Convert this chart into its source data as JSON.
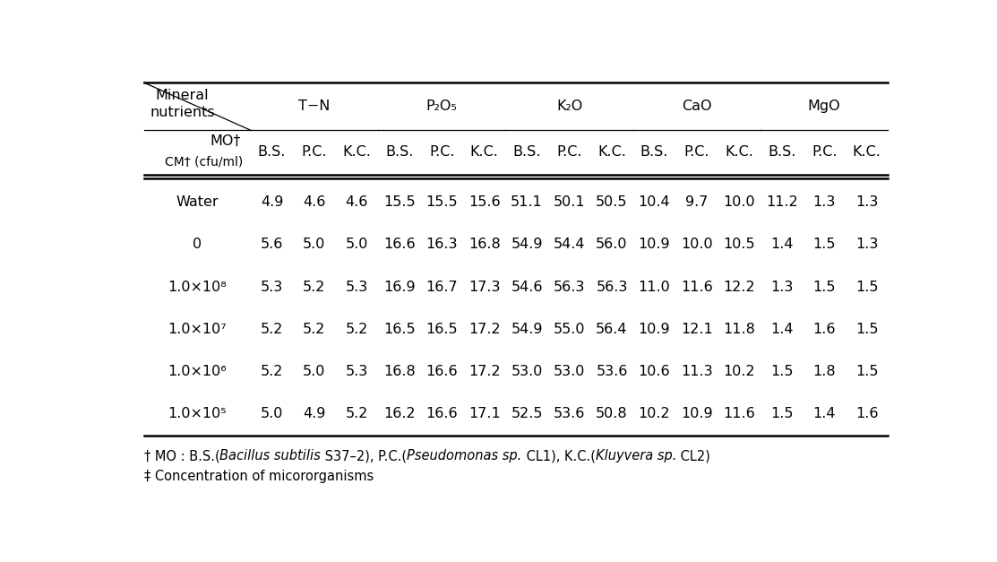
{
  "nutrient_groups": [
    "T−N",
    "P₂O₅",
    "K₂O",
    "CaO",
    "MgO"
  ],
  "subheaders": [
    "B.S.",
    "P.C.",
    "K.C.",
    "B.S.",
    "P.C.",
    "K.C.",
    "B.S.",
    "P.C.",
    "K.C.",
    "B.S.",
    "P.C.",
    "K.C.",
    "B.S.",
    "P.C.",
    "K.C."
  ],
  "rows": [
    {
      "label": "Water",
      "values": [
        "4.9",
        "4.6",
        "4.6",
        "15.5",
        "15.5",
        "15.6",
        "51.1",
        "50.1",
        "50.5",
        "10.4",
        "9.7",
        "10.0",
        "11.2",
        "1.3",
        "1.3"
      ]
    },
    {
      "label": "0",
      "values": [
        "5.6",
        "5.0",
        "5.0",
        "16.6",
        "16.3",
        "16.8",
        "54.9",
        "54.4",
        "56.0",
        "10.9",
        "10.0",
        "10.5",
        "1.4",
        "1.5",
        "1.3"
      ]
    },
    {
      "label": "1.0×10⁸",
      "values": [
        "5.3",
        "5.2",
        "5.3",
        "16.9",
        "16.7",
        "17.3",
        "54.6",
        "56.3",
        "56.3",
        "11.0",
        "11.6",
        "12.2",
        "1.3",
        "1.5",
        "1.5"
      ]
    },
    {
      "label": "1.0×10⁷",
      "values": [
        "5.2",
        "5.2",
        "5.2",
        "16.5",
        "16.5",
        "17.2",
        "54.9",
        "55.0",
        "56.4",
        "10.9",
        "12.1",
        "11.8",
        "1.4",
        "1.6",
        "1.5"
      ]
    },
    {
      "label": "1.0×10⁶",
      "values": [
        "5.2",
        "5.0",
        "5.3",
        "16.8",
        "16.6",
        "17.2",
        "53.0",
        "53.0",
        "53.6",
        "10.6",
        "11.3",
        "10.2",
        "1.5",
        "1.8",
        "1.5"
      ]
    },
    {
      "label": "1.0×10⁵",
      "values": [
        "5.0",
        "4.9",
        "5.2",
        "16.2",
        "16.6",
        "17.1",
        "52.5",
        "53.6",
        "50.8",
        "10.2",
        "10.9",
        "11.6",
        "1.5",
        "1.4",
        "1.6"
      ]
    }
  ],
  "footnote1_pieces": [
    [
      "† MO : B.S.(",
      false
    ],
    [
      "Bacillus subtilis",
      true
    ],
    [
      " S37–2), P.C.(",
      false
    ],
    [
      "Pseudomonas sp.",
      true
    ],
    [
      " CL1), K.C.(",
      false
    ],
    [
      "Kluyvera sp.",
      true
    ],
    [
      " CL2)",
      false
    ]
  ],
  "footnote2": "‡ Concentration of micororganisms",
  "bg_color": "#ffffff",
  "text_color": "#000000",
  "font_size": 11.5,
  "footnote_font_size": 10.5
}
